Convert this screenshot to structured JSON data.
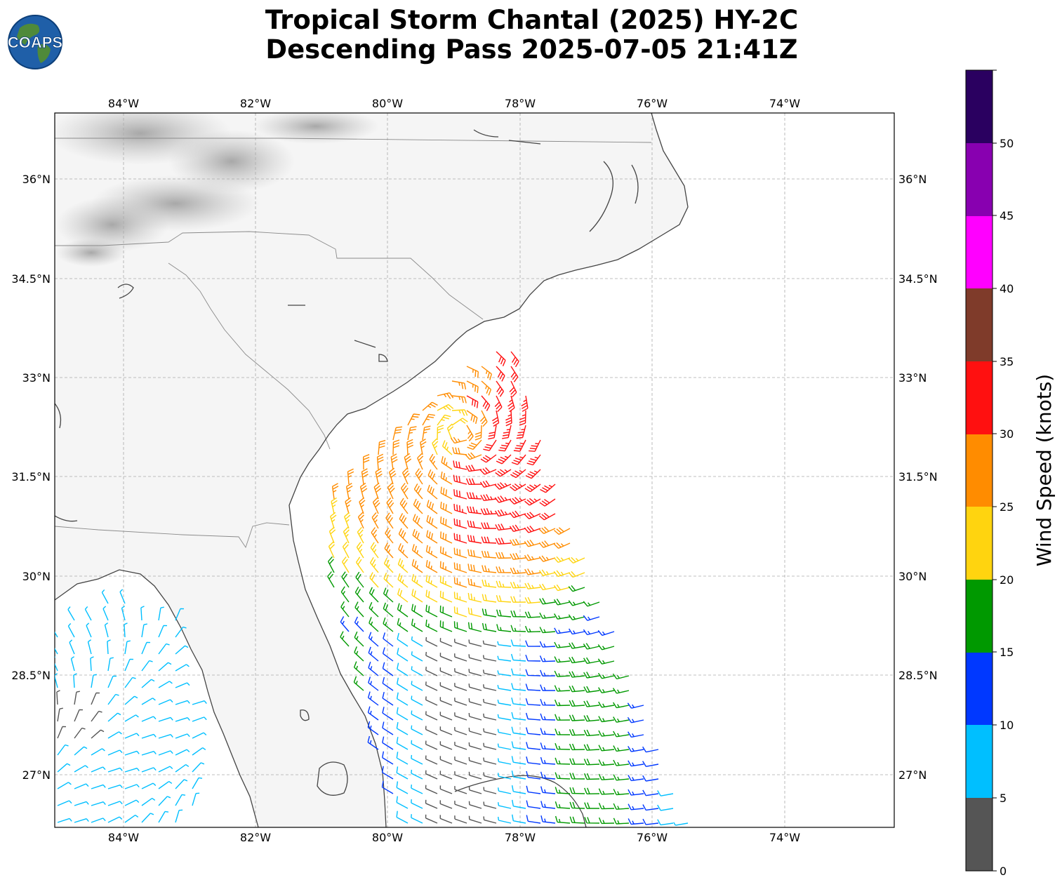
{
  "title": {
    "line1": "Tropical Storm Chantal (2025) HY-2C",
    "line2": "Descending Pass 2025-07-05 21:41Z"
  },
  "logo": {
    "text": "COAPS",
    "icon": "globe-icon"
  },
  "map": {
    "lon_ticks": [
      "84°W",
      "82°W",
      "80°W",
      "78°W",
      "76°W",
      "74°W"
    ],
    "lat_ticks": [
      "36°N",
      "34.5°N",
      "33°N",
      "31.5°N",
      "30°N",
      "28.5°N",
      "27°N"
    ],
    "extent": {
      "lon_min": -85.05,
      "lon_max": -72.35,
      "lat_min": 25.8,
      "lat_max": 37.0
    },
    "storm_center": {
      "lon": -78.9,
      "lat": 32.0
    }
  },
  "colorbar": {
    "title": "Wind Speed (knots)",
    "ticks": [
      "0",
      "5",
      "10",
      "15",
      "20",
      "25",
      "30",
      "35",
      "40",
      "45",
      "50"
    ],
    "bins": [
      {
        "range": [
          0,
          5
        ],
        "color": "#555555"
      },
      {
        "range": [
          5,
          10
        ],
        "color": "#00bfff"
      },
      {
        "range": [
          10,
          15
        ],
        "color": "#0038ff"
      },
      {
        "range": [
          15,
          20
        ],
        "color": "#009900"
      },
      {
        "range": [
          20,
          25
        ],
        "color": "#ffd40f"
      },
      {
        "range": [
          25,
          30
        ],
        "color": "#ff8c00"
      },
      {
        "range": [
          30,
          35
        ],
        "color": "#ff1010"
      },
      {
        "range": [
          35,
          40
        ],
        "color": "#7f3b2a"
      },
      {
        "range": [
          40,
          45
        ],
        "color": "#ff00ff"
      },
      {
        "range": [
          45,
          50
        ],
        "color": "#8800b0"
      },
      {
        "range": [
          50,
          55
        ],
        "color": "#2a0060"
      }
    ]
  }
}
